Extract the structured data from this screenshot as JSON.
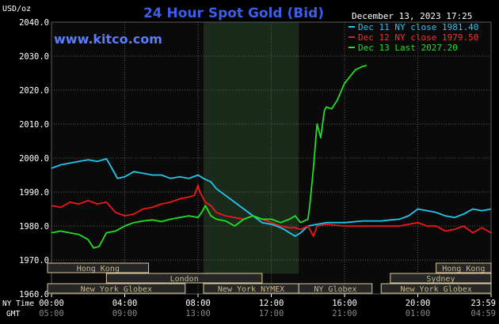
{
  "header": {
    "title": "24 Hour Spot Gold (Bid)",
    "website": "www.kitco.com",
    "datetime": "December 13, 2023 17:25",
    "unit_label": "USD/oz",
    "ny_time_label": "NY Time",
    "gmt_label": "GMT"
  },
  "colors": {
    "background": "#000000",
    "plot_bg": "#0a0a0a",
    "shade": "#1b2b1b",
    "grid": "#5a5a5a",
    "title": "#3a5fe8",
    "website": "#5a7cff",
    "text": "#ffffff",
    "dec11": "#22c8f0",
    "dec12": "#f01818",
    "dec13": "#22e022",
    "session_box_bg": "#262626",
    "session_box_border": "#d8c89a",
    "session_text": "#c8b98c"
  },
  "legend": [
    {
      "label": "Dec 11 NY close 1981.40",
      "color": "#22c8f0"
    },
    {
      "label": "Dec 12 NY close 1979.50",
      "color": "#f01818"
    },
    {
      "label": "Dec 13 Last 2027.20",
      "color": "#22e022"
    }
  ],
  "sessions": [
    {
      "name": "Hong Kong",
      "start": -1.0,
      "end": 5.3,
      "row": 0
    },
    {
      "name": "Hong Kong",
      "start": 21.0,
      "end": 24.0,
      "row": 0
    },
    {
      "name": "London",
      "start": 3.0,
      "end": 11.5,
      "row": 1
    },
    {
      "name": "Sydney",
      "start": 18.5,
      "end": 24.0,
      "row": 1
    },
    {
      "name": "New York Globex",
      "start": -1.0,
      "end": 7.3,
      "row": 2
    },
    {
      "name": "New York NYMEX",
      "start": 8.3,
      "end": 13.5,
      "row": 2
    },
    {
      "name": "NY Globex",
      "start": 13.5,
      "end": 17.5,
      "row": 2
    },
    {
      "name": "New York Globex",
      "start": 18.0,
      "end": 24.0,
      "row": 2
    }
  ],
  "chart_data": {
    "type": "line",
    "title": "24 Hour Spot Gold (Bid)",
    "ylabel": "USD/oz",
    "xlim": [
      0,
      24
    ],
    "ylim": [
      1960,
      2040
    ],
    "yticks": [
      {
        "value": 1960,
        "label": "1960.0"
      },
      {
        "value": 1970,
        "label": "1970.0"
      },
      {
        "value": 1980,
        "label": "1980.0"
      },
      {
        "value": 1990,
        "label": "1990.0"
      },
      {
        "value": 2000,
        "label": "2000.0"
      },
      {
        "value": 2010,
        "label": "2010.0"
      },
      {
        "value": 2020,
        "label": "2020.0"
      },
      {
        "value": 2030,
        "label": "2030.0"
      },
      {
        "value": 2040,
        "label": "2040.0"
      }
    ],
    "xticks": [
      {
        "value": 0,
        "ny": "00:00",
        "gmt": "05:00"
      },
      {
        "value": 4,
        "ny": "04:00",
        "gmt": "09:00"
      },
      {
        "value": 8,
        "ny": "08:00",
        "gmt": "13:00"
      },
      {
        "value": 12,
        "ny": "12:00",
        "gmt": "17:00"
      },
      {
        "value": 16,
        "ny": "16:00",
        "gmt": "21:00"
      },
      {
        "value": 20,
        "ny": "20:00",
        "gmt": "01:00"
      },
      {
        "value": 24,
        "ny": "23:59",
        "gmt": "04:59"
      }
    ],
    "shaded_range": [
      8.3,
      13.5
    ],
    "grid": true,
    "series": [
      {
        "name": "Dec 11 NY close 1981.40",
        "color": "#22c8f0",
        "x": [
          0,
          0.5,
          1,
          1.5,
          2,
          2.5,
          3,
          3.3,
          3.6,
          4,
          4.5,
          5,
          5.5,
          6,
          6.5,
          7,
          7.5,
          8,
          8.3,
          8.7,
          9,
          9.5,
          10,
          10.5,
          11,
          11.5,
          12,
          12.3,
          12.7,
          13,
          13.3,
          13.6,
          14,
          15,
          16,
          17,
          18,
          18.5,
          19,
          19.5,
          20,
          20.5,
          21,
          21.5,
          22,
          22.5,
          23,
          23.5,
          24
        ],
        "y": [
          1997,
          1998,
          1998.5,
          1999,
          1999.5,
          1999,
          1999.8,
          1997,
          1994,
          1994.5,
          1996,
          1995.5,
          1995,
          1995,
          1994,
          1994.5,
          1994,
          1995,
          1994,
          1993,
          1991,
          1989,
          1987,
          1985,
          1983,
          1981,
          1980.5,
          1980,
          1979,
          1978,
          1977,
          1978,
          1980,
          1981,
          1981,
          1981.5,
          1981.5,
          1981.8,
          1982,
          1983,
          1985,
          1984.5,
          1984,
          1983,
          1982.5,
          1983.5,
          1985,
          1984.5,
          1985
        ]
      },
      {
        "name": "Dec 12 NY close 1979.50",
        "color": "#f01818",
        "x": [
          0,
          0.5,
          1,
          1.5,
          2,
          2.5,
          3,
          3.5,
          4,
          4.5,
          5,
          5.5,
          6,
          6.5,
          7,
          7.5,
          7.8,
          8,
          8.1,
          8.4,
          8.7,
          9,
          9.5,
          10,
          10.5,
          11,
          11.5,
          12,
          12.5,
          13,
          13.3,
          13.6,
          14,
          14.3,
          14.5,
          15,
          16,
          17,
          18,
          19,
          20,
          20.5,
          21,
          21.5,
          22,
          22.5,
          23,
          23.5,
          24
        ],
        "y": [
          1986,
          1985.5,
          1987,
          1986.5,
          1987.5,
          1986.5,
          1987,
          1984,
          1983,
          1983.5,
          1985,
          1985.5,
          1986.5,
          1987,
          1988,
          1988.5,
          1989,
          1992,
          1990,
          1987,
          1986,
          1984,
          1983,
          1982.5,
          1982,
          1983,
          1982,
          1981,
          1980,
          1979.5,
          1979.5,
          1979,
          1980,
          1977,
          1980,
          1980.5,
          1980,
          1980,
          1980,
          1980,
          1981,
          1980,
          1980,
          1978.5,
          1979,
          1980,
          1978,
          1979.5,
          1978
        ]
      },
      {
        "name": "Dec 13 Last 2027.20",
        "color": "#22e022",
        "x": [
          0,
          0.5,
          1,
          1.5,
          2,
          2.3,
          2.6,
          3,
          3.5,
          4,
          4.5,
          5,
          5.5,
          6,
          6.5,
          7,
          7.5,
          8,
          8.2,
          8.4,
          8.7,
          9,
          9.5,
          10,
          10.5,
          11,
          11.5,
          12,
          12.5,
          13,
          13.3,
          13.6,
          14,
          14.1,
          14.3,
          14.5,
          14.7,
          14.9,
          15,
          15.3,
          15.6,
          16,
          16.3,
          16.6,
          17,
          17.2
        ],
        "y": [
          1978,
          1978.5,
          1978,
          1977.5,
          1976,
          1973.5,
          1974,
          1978,
          1978.5,
          1980,
          1981,
          1981.5,
          1981.8,
          1981.3,
          1982,
          1982.5,
          1983,
          1982.5,
          1984,
          1986,
          1983,
          1982,
          1981.5,
          1980,
          1982,
          1983,
          1982,
          1982,
          1981,
          1982,
          1983,
          1981,
          1982,
          1986,
          1997,
          2010,
          2006,
          2014,
          2015,
          2014.5,
          2017,
          2022,
          2024,
          2026,
          2027,
          2027.2
        ]
      }
    ]
  }
}
